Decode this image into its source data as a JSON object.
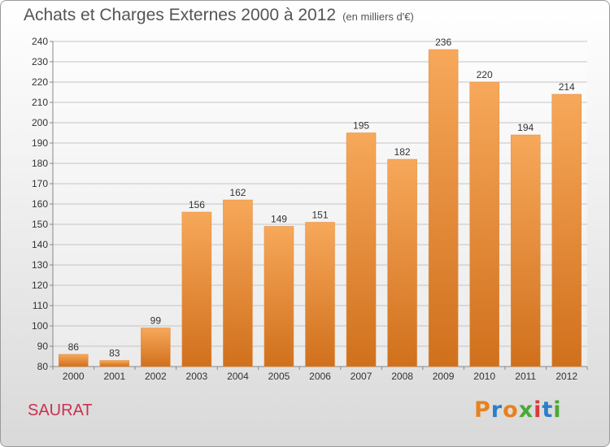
{
  "header": {
    "title": "Achats et Charges Externes 2000 à 2012",
    "subtitle": "(en milliers d'€)"
  },
  "commune": "SAURAT",
  "logo": {
    "letters": [
      "P",
      "r",
      "o",
      "x",
      "i",
      "t",
      "i"
    ],
    "colors": [
      "#e8821c",
      "#2a7fc8",
      "#e8821c",
      "#47a935",
      "#d93a3a",
      "#2a7fc8",
      "#47a935"
    ]
  },
  "chart_data": {
    "type": "bar",
    "title": "Achats et Charges Externes 2000 à 2012",
    "subtitle": "(en milliers d'€)",
    "categories": [
      "2000",
      "2001",
      "2002",
      "2003",
      "2004",
      "2005",
      "2006",
      "2007",
      "2008",
      "2009",
      "2010",
      "2011",
      "2012"
    ],
    "values": [
      86,
      83,
      99,
      156,
      162,
      149,
      151,
      195,
      182,
      236,
      220,
      194,
      214
    ],
    "ylim": [
      80,
      240
    ],
    "yticks": [
      80,
      90,
      100,
      110,
      120,
      130,
      140,
      150,
      160,
      170,
      180,
      190,
      200,
      210,
      220,
      230,
      240
    ],
    "grid": true,
    "bar_color": "#f0963c"
  }
}
